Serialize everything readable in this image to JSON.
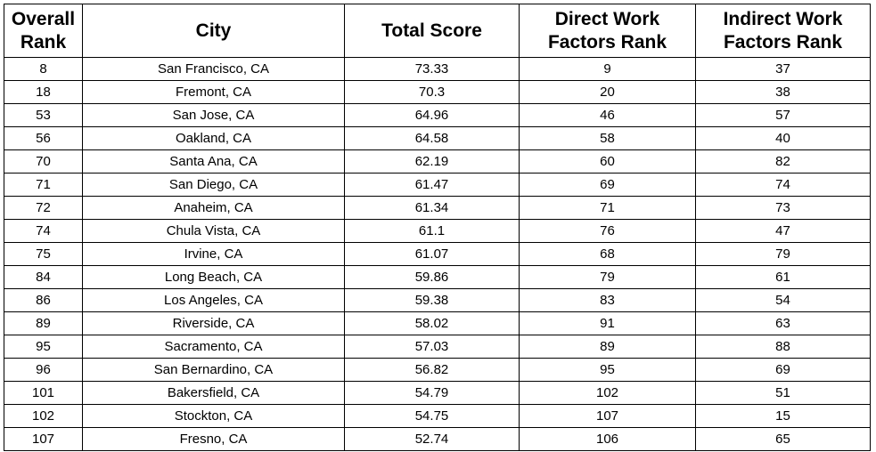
{
  "table": {
    "headers": [
      "Overall Rank",
      "City",
      "Total Score",
      "Direct Work Factors Rank",
      "Indirect Work Factors Rank"
    ],
    "rows": [
      [
        "8",
        "San Francisco, CA",
        "73.33",
        "9",
        "37"
      ],
      [
        "18",
        "Fremont, CA",
        "70.3",
        "20",
        "38"
      ],
      [
        "53",
        "San Jose, CA",
        "64.96",
        "46",
        "57"
      ],
      [
        "56",
        "Oakland, CA",
        "64.58",
        "58",
        "40"
      ],
      [
        "70",
        "Santa Ana, CA",
        "62.19",
        "60",
        "82"
      ],
      [
        "71",
        "San Diego, CA",
        "61.47",
        "69",
        "74"
      ],
      [
        "72",
        "Anaheim, CA",
        "61.34",
        "71",
        "73"
      ],
      [
        "74",
        "Chula Vista, CA",
        "61.1",
        "76",
        "47"
      ],
      [
        "75",
        "Irvine, CA",
        "61.07",
        "68",
        "79"
      ],
      [
        "84",
        "Long Beach, CA",
        "59.86",
        "79",
        "61"
      ],
      [
        "86",
        "Los Angeles, CA",
        "59.38",
        "83",
        "54"
      ],
      [
        "89",
        "Riverside, CA",
        "58.02",
        "91",
        "63"
      ],
      [
        "95",
        "Sacramento, CA",
        "57.03",
        "89",
        "88"
      ],
      [
        "96",
        "San Bernardino, CA",
        "56.82",
        "95",
        "69"
      ],
      [
        "101",
        "Bakersfield, CA",
        "54.79",
        "102",
        "51"
      ],
      [
        "102",
        "Stockton, CA",
        "54.75",
        "107",
        "15"
      ],
      [
        "107",
        "Fresno, CA",
        "52.74",
        "106",
        "65"
      ]
    ]
  }
}
